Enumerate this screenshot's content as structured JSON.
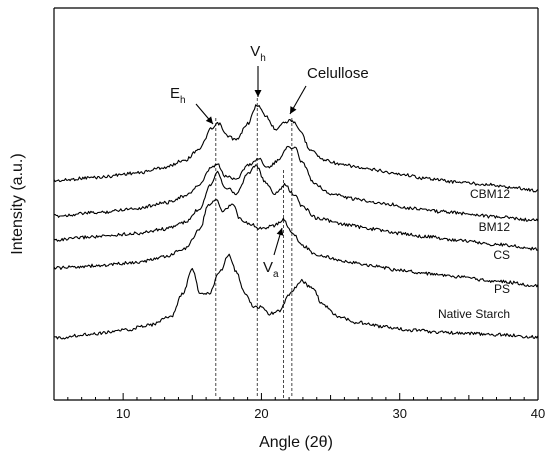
{
  "chart_data": {
    "type": "line",
    "xlabel": "Angle (2θ)",
    "ylabel": "Intensity (a.u.)",
    "xlim": [
      5,
      40
    ],
    "x_ticks": [
      10,
      20,
      30,
      40
    ],
    "y_ticks_shown": false,
    "grid": false,
    "offset_traces": true,
    "series": [
      {
        "name": "CBM12",
        "points": [
          [
            5,
            0.03
          ],
          [
            8,
            0.06
          ],
          [
            11,
            0.1
          ],
          [
            13,
            0.15
          ],
          [
            14.5,
            0.22
          ],
          [
            15.5,
            0.32
          ],
          [
            16.4,
            0.5
          ],
          [
            16.9,
            0.55
          ],
          [
            17.5,
            0.44
          ],
          [
            18.2,
            0.4
          ],
          [
            19.0,
            0.55
          ],
          [
            19.7,
            0.72
          ],
          [
            20.3,
            0.62
          ],
          [
            21.0,
            0.5
          ],
          [
            21.6,
            0.56
          ],
          [
            22.2,
            0.58
          ],
          [
            22.8,
            0.48
          ],
          [
            23.5,
            0.32
          ],
          [
            24.5,
            0.22
          ],
          [
            26,
            0.17
          ],
          [
            28,
            0.13
          ],
          [
            30,
            0.09
          ],
          [
            32,
            0.05
          ],
          [
            34,
            0.02
          ],
          [
            36,
            0.0
          ],
          [
            38,
            -0.03
          ],
          [
            40,
            -0.06
          ]
        ]
      },
      {
        "name": "BM12",
        "points": [
          [
            5,
            0.0
          ],
          [
            8,
            0.03
          ],
          [
            11,
            0.07
          ],
          [
            13,
            0.12
          ],
          [
            14.5,
            0.18
          ],
          [
            15.5,
            0.28
          ],
          [
            16.4,
            0.44
          ],
          [
            16.8,
            0.47
          ],
          [
            17.4,
            0.36
          ],
          [
            18.2,
            0.34
          ],
          [
            19.0,
            0.46
          ],
          [
            19.8,
            0.52
          ],
          [
            20.5,
            0.44
          ],
          [
            21.2,
            0.5
          ],
          [
            21.8,
            0.62
          ],
          [
            22.4,
            0.62
          ],
          [
            23.0,
            0.48
          ],
          [
            23.8,
            0.3
          ],
          [
            25,
            0.2
          ],
          [
            27,
            0.15
          ],
          [
            29,
            0.11
          ],
          [
            31,
            0.07
          ],
          [
            33,
            0.04
          ],
          [
            35,
            0.02
          ],
          [
            37,
            -0.01
          ],
          [
            40,
            -0.04
          ]
        ]
      },
      {
        "name": "CS",
        "points": [
          [
            5,
            0.0
          ],
          [
            8,
            0.03
          ],
          [
            11,
            0.06
          ],
          [
            13,
            0.1
          ],
          [
            14.5,
            0.16
          ],
          [
            15.5,
            0.28
          ],
          [
            16.3,
            0.5
          ],
          [
            16.8,
            0.62
          ],
          [
            17.4,
            0.48
          ],
          [
            18.2,
            0.42
          ],
          [
            19.0,
            0.6
          ],
          [
            19.6,
            0.68
          ],
          [
            20.3,
            0.52
          ],
          [
            21.0,
            0.42
          ],
          [
            21.7,
            0.5
          ],
          [
            22.3,
            0.42
          ],
          [
            23.0,
            0.3
          ],
          [
            24,
            0.2
          ],
          [
            26,
            0.14
          ],
          [
            28,
            0.1
          ],
          [
            30,
            0.06
          ],
          [
            32,
            0.03
          ],
          [
            34,
            0.0
          ],
          [
            37,
            -0.04
          ],
          [
            40,
            -0.08
          ]
        ]
      },
      {
        "name": "PS",
        "points": [
          [
            5,
            0.0
          ],
          [
            8,
            0.02
          ],
          [
            11,
            0.05
          ],
          [
            13,
            0.1
          ],
          [
            14.5,
            0.18
          ],
          [
            15.5,
            0.34
          ],
          [
            16.2,
            0.58
          ],
          [
            16.7,
            0.62
          ],
          [
            17.2,
            0.52
          ],
          [
            17.9,
            0.58
          ],
          [
            18.5,
            0.44
          ],
          [
            19.2,
            0.4
          ],
          [
            19.9,
            0.36
          ],
          [
            20.8,
            0.38
          ],
          [
            21.6,
            0.44
          ],
          [
            22.2,
            0.32
          ],
          [
            23.0,
            0.2
          ],
          [
            24,
            0.12
          ],
          [
            26,
            0.06
          ],
          [
            28,
            0.02
          ],
          [
            30,
            -0.02
          ],
          [
            32,
            -0.05
          ],
          [
            34,
            -0.08
          ],
          [
            37,
            -0.12
          ],
          [
            40,
            -0.16
          ]
        ]
      },
      {
        "name": "Native Starch",
        "points": [
          [
            5,
            0.0
          ],
          [
            8,
            0.04
          ],
          [
            10,
            0.07
          ],
          [
            12,
            0.12
          ],
          [
            13.5,
            0.2
          ],
          [
            14.3,
            0.4
          ],
          [
            15.0,
            0.62
          ],
          [
            15.6,
            0.4
          ],
          [
            16.2,
            0.4
          ],
          [
            17.0,
            0.6
          ],
          [
            17.6,
            0.76
          ],
          [
            18.2,
            0.6
          ],
          [
            18.8,
            0.4
          ],
          [
            19.5,
            0.28
          ],
          [
            20.0,
            0.28
          ],
          [
            20.6,
            0.22
          ],
          [
            21.3,
            0.24
          ],
          [
            22.0,
            0.4
          ],
          [
            22.9,
            0.52
          ],
          [
            23.6,
            0.46
          ],
          [
            24.5,
            0.3
          ],
          [
            25.5,
            0.2
          ],
          [
            27,
            0.14
          ],
          [
            29,
            0.1
          ],
          [
            31,
            0.07
          ],
          [
            33,
            0.05
          ],
          [
            35,
            0.04
          ],
          [
            37,
            0.03
          ],
          [
            40,
            0.01
          ]
        ]
      }
    ],
    "reference_lines_x": [
      16.7,
      19.7,
      21.6,
      22.2
    ],
    "annotations": [
      {
        "label": "E",
        "subscript": "h",
        "target_x": 16.9
      },
      {
        "label": "V",
        "subscript": "h",
        "target_x": 19.7
      },
      {
        "label": "Celullose",
        "subscript": "",
        "target_x": 22.2
      },
      {
        "label": "V",
        "subscript": "a",
        "target_x": 21.6
      }
    ]
  }
}
